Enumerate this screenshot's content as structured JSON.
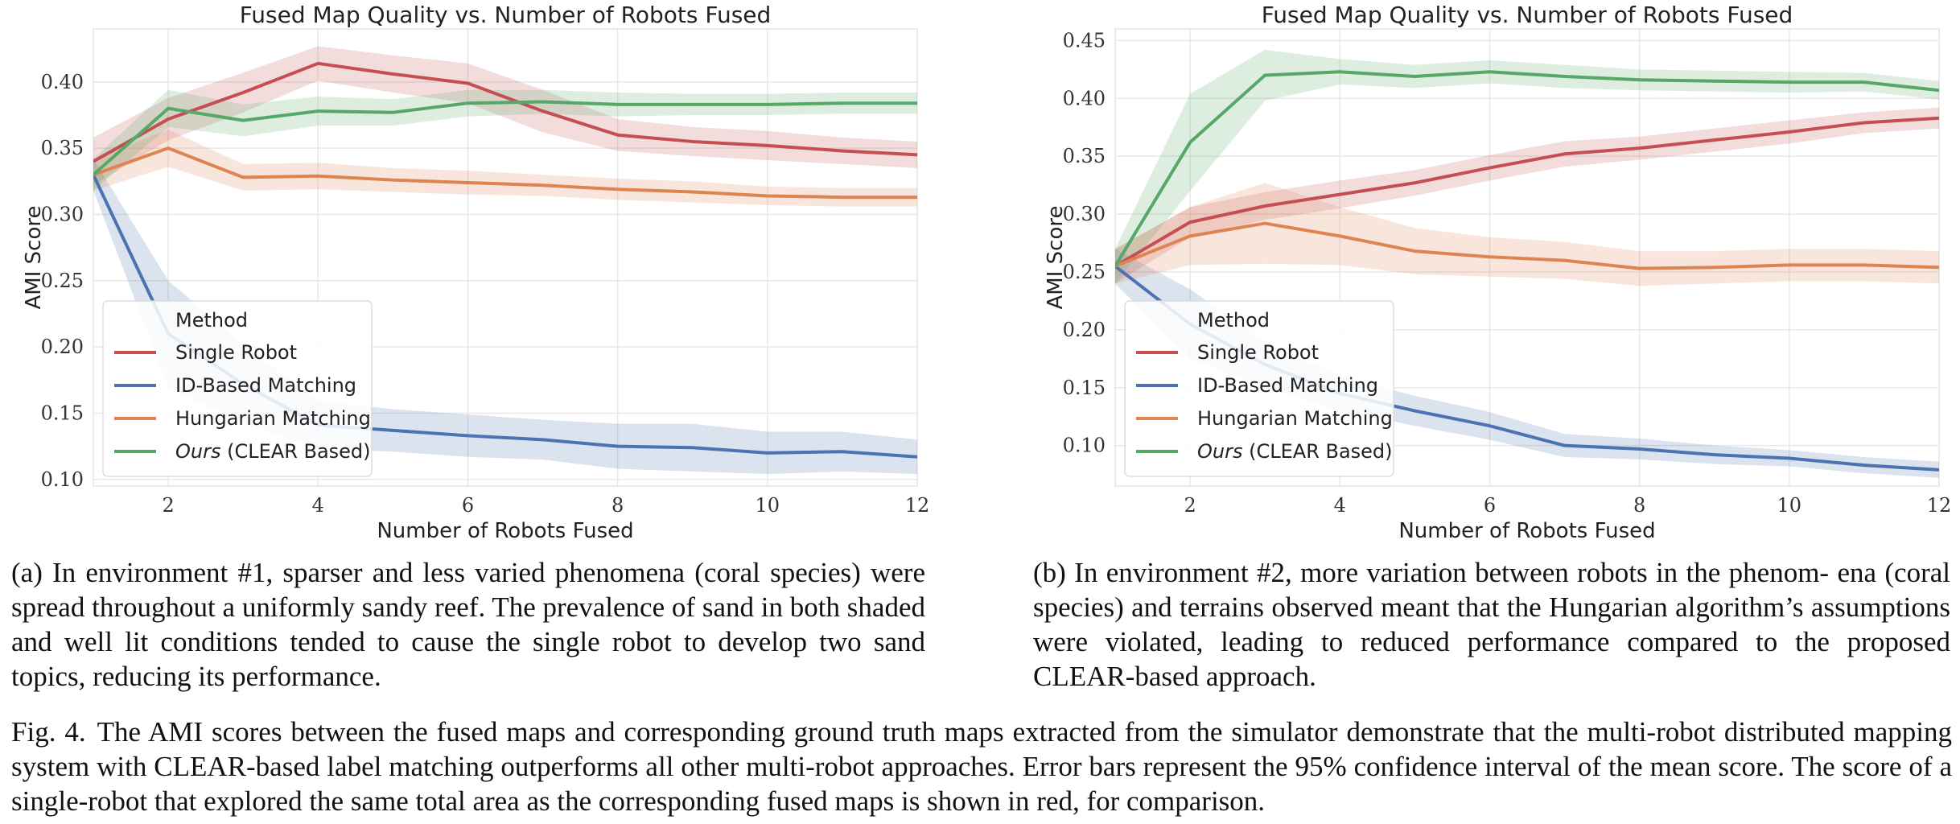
{
  "chart_data": [
    {
      "type": "line",
      "title": "Fused Map Quality vs. Number of Robots Fused",
      "xlabel": "Number of Robots Fused",
      "ylabel": "AMI Score",
      "xlim": [
        1,
        12
      ],
      "ylim": [
        0.095,
        0.44
      ],
      "xticks": [
        2,
        4,
        6,
        8,
        10,
        12
      ],
      "yticks": [
        0.1,
        0.15,
        0.2,
        0.25,
        0.3,
        0.35,
        0.4
      ],
      "grid": true,
      "legend_position": "lower-left",
      "legend_title": "Method",
      "x": [
        1,
        2,
        3,
        4,
        5,
        6,
        7,
        8,
        9,
        10,
        11,
        12
      ],
      "series": [
        {
          "name": "Single Robot",
          "name_italic": "",
          "name_rest": "Single Robot",
          "color": "#c44e52",
          "values": [
            0.34,
            0.372,
            0.392,
            0.414,
            0.406,
            0.399,
            0.378,
            0.36,
            0.355,
            0.352,
            0.348,
            0.345
          ],
          "ci": [
            0.018,
            0.016,
            0.015,
            0.013,
            0.014,
            0.015,
            0.016,
            0.012,
            0.011,
            0.011,
            0.01,
            0.01
          ]
        },
        {
          "name": "ID-Based Matching",
          "name_italic": "",
          "name_rest": "ID-Based Matching",
          "color": "#4c72b0",
          "values": [
            0.33,
            0.21,
            0.172,
            0.141,
            0.137,
            0.133,
            0.13,
            0.125,
            0.124,
            0.12,
            0.121,
            0.117
          ],
          "ci": [
            0.012,
            0.04,
            0.03,
            0.018,
            0.016,
            0.016,
            0.015,
            0.017,
            0.018,
            0.016,
            0.015,
            0.013
          ]
        },
        {
          "name": "Hungarian Matching",
          "name_italic": "",
          "name_rest": "Hungarian Matching",
          "color": "#dd8452",
          "values": [
            0.33,
            0.35,
            0.328,
            0.329,
            0.326,
            0.324,
            0.322,
            0.319,
            0.317,
            0.314,
            0.313,
            0.313
          ],
          "ci": [
            0.012,
            0.014,
            0.01,
            0.01,
            0.009,
            0.009,
            0.008,
            0.008,
            0.008,
            0.007,
            0.007,
            0.007
          ]
        },
        {
          "name": "Ours (CLEAR Based)",
          "name_italic": "Ours",
          "name_rest": " (CLEAR Based)",
          "color": "#55a868",
          "values": [
            0.33,
            0.38,
            0.371,
            0.378,
            0.377,
            0.384,
            0.385,
            0.383,
            0.383,
            0.383,
            0.384,
            0.384
          ],
          "ci": [
            0.012,
            0.014,
            0.012,
            0.011,
            0.01,
            0.01,
            0.009,
            0.009,
            0.008,
            0.008,
            0.008,
            0.008
          ]
        }
      ]
    },
    {
      "type": "line",
      "title": "Fused Map Quality vs. Number of Robots Fused",
      "xlabel": "Number of Robots Fused",
      "ylabel": "AMI Score",
      "xlim": [
        1,
        12
      ],
      "ylim": [
        0.065,
        0.46
      ],
      "xticks": [
        2,
        4,
        6,
        8,
        10,
        12
      ],
      "yticks": [
        0.1,
        0.15,
        0.2,
        0.25,
        0.3,
        0.35,
        0.4,
        0.45
      ],
      "grid": true,
      "legend_position": "lower-left",
      "legend_title": "Method",
      "x": [
        1,
        2,
        3,
        4,
        5,
        6,
        7,
        8,
        9,
        10,
        11,
        12
      ],
      "series": [
        {
          "name": "Single Robot",
          "name_italic": "",
          "name_rest": "Single Robot",
          "color": "#c44e52",
          "values": [
            0.255,
            0.293,
            0.307,
            0.317,
            0.327,
            0.34,
            0.352,
            0.357,
            0.364,
            0.371,
            0.379,
            0.383
          ],
          "ci": [
            0.015,
            0.013,
            0.012,
            0.012,
            0.011,
            0.011,
            0.011,
            0.01,
            0.01,
            0.01,
            0.009,
            0.009
          ]
        },
        {
          "name": "ID-Based Matching",
          "name_italic": "",
          "name_rest": "ID-Based Matching",
          "color": "#4c72b0",
          "values": [
            0.255,
            0.205,
            0.17,
            0.145,
            0.13,
            0.117,
            0.1,
            0.097,
            0.092,
            0.089,
            0.083,
            0.079
          ],
          "ci": [
            0.015,
            0.03,
            0.02,
            0.015,
            0.013,
            0.012,
            0.01,
            0.009,
            0.008,
            0.007,
            0.007,
            0.007
          ]
        },
        {
          "name": "Hungarian Matching",
          "name_italic": "",
          "name_rest": "Hungarian Matching",
          "color": "#dd8452",
          "values": [
            0.255,
            0.281,
            0.292,
            0.281,
            0.268,
            0.263,
            0.26,
            0.253,
            0.254,
            0.256,
            0.256,
            0.254
          ],
          "ci": [
            0.015,
            0.025,
            0.035,
            0.025,
            0.02,
            0.017,
            0.016,
            0.015,
            0.014,
            0.014,
            0.014,
            0.014
          ]
        },
        {
          "name": "Ours (CLEAR Based)",
          "name_italic": "Ours",
          "name_rest": " (CLEAR Based)",
          "color": "#55a868",
          "values": [
            0.255,
            0.362,
            0.42,
            0.423,
            0.419,
            0.423,
            0.419,
            0.416,
            0.415,
            0.414,
            0.414,
            0.407
          ],
          "ci": [
            0.015,
            0.042,
            0.022,
            0.011,
            0.01,
            0.01,
            0.01,
            0.009,
            0.009,
            0.009,
            0.008,
            0.008
          ]
        }
      ]
    }
  ],
  "captions": {
    "a": "(a) In environment #1, sparser and less varied phenomena (coral species) were spread throughout a uniformly sandy reef. The prevalence of sand in both shaded and well lit conditions tended to cause the single robot to develop two sand topics, reducing its performance.",
    "b": "(b) In environment #2, more variation between robots in the phenom- ena (coral species) and terrains observed meant that the Hungarian algorithm’s assumptions were violated, leading to reduced performance compared to the proposed CLEAR-based approach.",
    "fig_label": "Fig. 4.",
    "fig_text": "The AMI scores between the fused maps and corresponding ground truth maps extracted from the simulator demonstrate that the multi-robot distributed mapping system with CLEAR-based label matching outperforms all other multi-robot approaches. Error bars represent the 95% confidence interval of the mean score. The score of a single-robot that explored the same total area as the corresponding fused maps is shown in red, for comparison."
  }
}
